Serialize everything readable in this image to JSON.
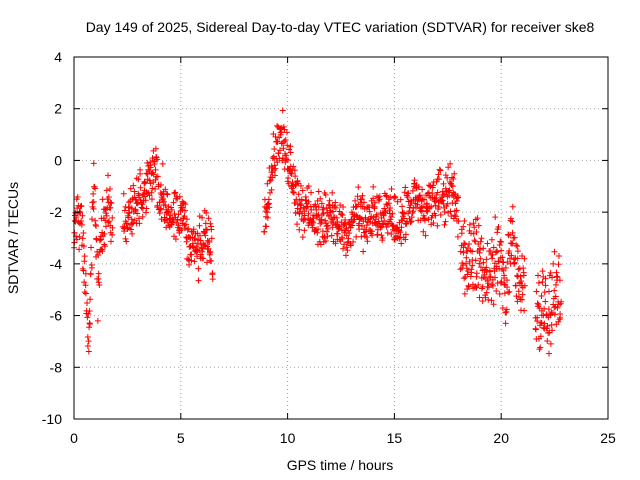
{
  "chart_data": {
    "type": "scatter",
    "title": "Day 149 of 2025, Sidereal Day-to-day VTEC variation (SDTVAR) for receiver ske8",
    "xlabel": "GPS time / hours",
    "ylabel": "SDTVAR / TECUs",
    "xlim": [
      0,
      25
    ],
    "ylim": [
      -10,
      4
    ],
    "xticks": [
      0,
      5,
      10,
      15,
      20,
      25
    ],
    "yticks": [
      -10,
      -8,
      -6,
      -4,
      -2,
      0,
      2,
      4
    ],
    "grid": true,
    "marker": "+",
    "series_color": "#ff0000",
    "series": [
      {
        "name": "SDTVAR",
        "segments": [
          {
            "x": [
              0.0,
              0.2,
              0.4,
              0.5,
              0.6,
              0.7,
              0.8,
              0.9,
              1.0,
              1.1,
              1.2,
              1.4,
              1.6,
              1.8
            ],
            "center": [
              -2.5,
              -2.0,
              -3.0,
              -4.5,
              -5.5,
              -7.0,
              -4.0,
              -1.0,
              -2.0,
              -5.0,
              -3.5,
              -2.5,
              -1.5,
              -3.0
            ],
            "spread": 1.6
          },
          {
            "x": [
              2.3,
              2.6,
              3.0,
              3.4,
              3.8,
              4.2,
              4.6,
              5.0,
              5.4,
              5.8,
              6.2,
              6.5
            ],
            "center": [
              -2.5,
              -2.0,
              -1.5,
              -1.0,
              -0.5,
              -1.5,
              -2.5,
              -2.0,
              -3.0,
              -3.5,
              -3.0,
              -3.5
            ],
            "spread": 1.4
          },
          {
            "x": [
              8.9,
              9.1,
              9.3,
              9.5,
              9.7,
              9.9,
              10.2,
              10.5,
              10.8,
              11.2,
              11.6,
              12.0,
              12.4,
              12.8,
              13.2,
              13.6,
              14.0,
              14.4,
              14.8,
              15.2,
              15.6,
              16.0,
              16.4,
              16.8,
              17.2,
              17.6,
              18.0
            ],
            "center": [
              -2.5,
              -1.0,
              0.0,
              0.5,
              1.0,
              0.5,
              -0.5,
              -1.5,
              -2.0,
              -2.0,
              -2.5,
              -2.0,
              -2.5,
              -3.0,
              -2.0,
              -2.5,
              -2.0,
              -2.5,
              -2.0,
              -2.5,
              -2.0,
              -1.5,
              -2.0,
              -1.5,
              -1.5,
              -1.0,
              -2.0
            ],
            "spread": 1.2
          },
          {
            "x": [
              18.1,
              18.4,
              18.7,
              19.0,
              19.3,
              19.6,
              19.9,
              20.2,
              20.5,
              20.8,
              21.1
            ],
            "center": [
              -3.0,
              -4.0,
              -3.5,
              -4.0,
              -4.5,
              -4.0,
              -3.5,
              -5.0,
              -3.0,
              -4.5,
              -5.0
            ],
            "spread": 1.8
          },
          {
            "x": [
              21.6,
              21.9,
              22.2,
              22.5,
              22.8
            ],
            "center": [
              -6.0,
              -5.5,
              -6.0,
              -5.0,
              -5.5
            ],
            "spread": 2.0
          }
        ]
      }
    ]
  }
}
